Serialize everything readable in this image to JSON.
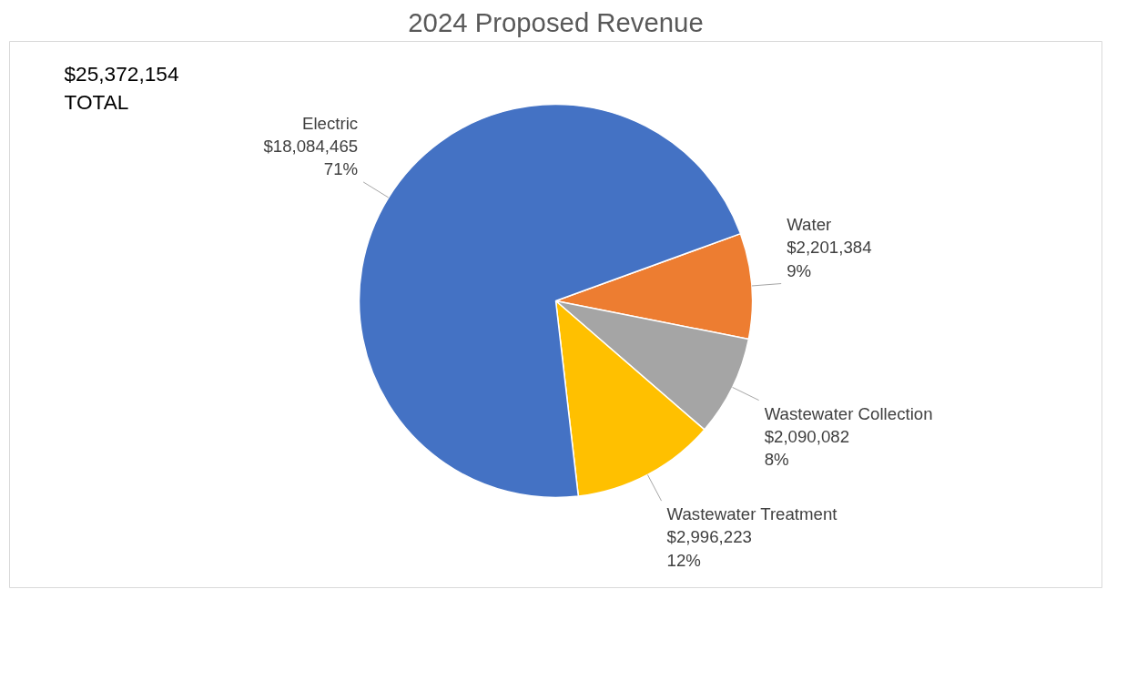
{
  "chart_data": {
    "type": "pie",
    "title": "2024 Proposed Revenue",
    "categories": [
      "Water",
      "Wastewater Collection",
      "Wastewater Treatment",
      "Electric"
    ],
    "values": [
      2201384,
      2090082,
      2996223,
      18084465
    ],
    "colors": [
      "#ed7d31",
      "#a5a5a5",
      "#ffc000",
      "#4472c4"
    ],
    "value_labels": [
      "$2,201,384\n9%",
      "$2,090,082\n8%",
      "$2,996,223\n12%",
      "$18,084,465\n71%"
    ],
    "annotations": [
      "$25,372,154\nTOTAL"
    ],
    "legend": false
  }
}
